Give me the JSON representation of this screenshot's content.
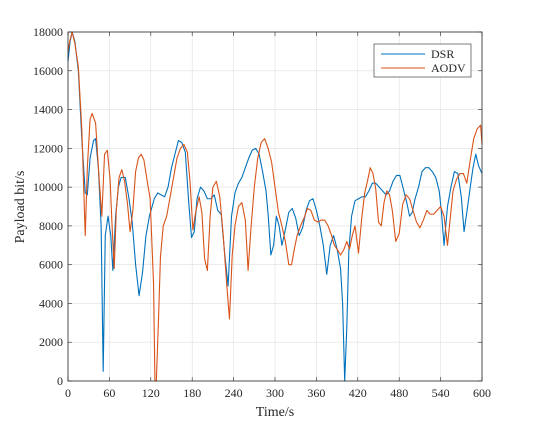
{
  "chart_data": {
    "type": "line",
    "title": "",
    "xlabel": "Time/s",
    "ylabel": "Payload bit/s",
    "xlim": [
      0,
      600
    ],
    "ylim": [
      0,
      18000
    ],
    "xticks": [
      0,
      60,
      120,
      180,
      240,
      300,
      360,
      420,
      480,
      540,
      600
    ],
    "yticks": [
      0,
      2000,
      4000,
      6000,
      8000,
      10000,
      12000,
      14000,
      16000,
      18000
    ],
    "grid": true,
    "legend_position": "top-right",
    "series": [
      {
        "name": "DSR",
        "color": "#0072BD",
        "points": [
          [
            0,
            16500
          ],
          [
            3,
            17500
          ],
          [
            6,
            18000
          ],
          [
            10,
            17500
          ],
          [
            15,
            16000
          ],
          [
            20,
            12500
          ],
          [
            25,
            9700
          ],
          [
            28,
            9600
          ],
          [
            32,
            11500
          ],
          [
            37,
            12400
          ],
          [
            40,
            12500
          ],
          [
            44,
            11000
          ],
          [
            48,
            8000
          ],
          [
            51,
            500
          ],
          [
            54,
            7500
          ],
          [
            58,
            8500
          ],
          [
            62,
            7500
          ],
          [
            65,
            5700
          ],
          [
            69,
            8500
          ],
          [
            73,
            10000
          ],
          [
            77,
            10500
          ],
          [
            83,
            10500
          ],
          [
            88,
            9500
          ],
          [
            93,
            8200
          ],
          [
            98,
            6000
          ],
          [
            103,
            4400
          ],
          [
            108,
            5600
          ],
          [
            113,
            7500
          ],
          [
            118,
            8500
          ],
          [
            125,
            9400
          ],
          [
            130,
            9700
          ],
          [
            135,
            9600
          ],
          [
            140,
            9500
          ],
          [
            145,
            10000
          ],
          [
            150,
            11000
          ],
          [
            155,
            11700
          ],
          [
            160,
            12400
          ],
          [
            165,
            12300
          ],
          [
            170,
            11800
          ],
          [
            175,
            9200
          ],
          [
            179,
            7400
          ],
          [
            183,
            7700
          ],
          [
            187,
            9400
          ],
          [
            192,
            10000
          ],
          [
            197,
            9800
          ],
          [
            202,
            9400
          ],
          [
            207,
            9400
          ],
          [
            212,
            9600
          ],
          [
            217,
            8800
          ],
          [
            222,
            8600
          ],
          [
            227,
            6600
          ],
          [
            232,
            4900
          ],
          [
            237,
            8500
          ],
          [
            242,
            9700
          ],
          [
            247,
            10200
          ],
          [
            252,
            10500
          ],
          [
            257,
            11000
          ],
          [
            262,
            11500
          ],
          [
            267,
            11900
          ],
          [
            272,
            12000
          ],
          [
            277,
            11700
          ],
          [
            282,
            10800
          ],
          [
            287,
            9800
          ],
          [
            290,
            8600
          ],
          [
            294,
            6500
          ],
          [
            298,
            7000
          ],
          [
            302,
            8500
          ],
          [
            306,
            8000
          ],
          [
            310,
            7000
          ],
          [
            315,
            7800
          ],
          [
            320,
            8700
          ],
          [
            325,
            8900
          ],
          [
            330,
            8400
          ],
          [
            335,
            7500
          ],
          [
            340,
            7900
          ],
          [
            345,
            8800
          ],
          [
            350,
            9300
          ],
          [
            355,
            9400
          ],
          [
            360,
            8800
          ],
          [
            365,
            8000
          ],
          [
            370,
            7000
          ],
          [
            375,
            5500
          ],
          [
            380,
            7000
          ],
          [
            385,
            7500
          ],
          [
            390,
            6800
          ],
          [
            395,
            5800
          ],
          [
            398,
            4000
          ],
          [
            401,
            0
          ],
          [
            404,
            2700
          ],
          [
            407,
            6700
          ],
          [
            411,
            8500
          ],
          [
            416,
            9300
          ],
          [
            421,
            9400
          ],
          [
            426,
            9500
          ],
          [
            431,
            9500
          ],
          [
            436,
            9800
          ],
          [
            441,
            10200
          ],
          [
            446,
            10200
          ],
          [
            451,
            10000
          ],
          [
            456,
            9800
          ],
          [
            461,
            9600
          ],
          [
            466,
            9800
          ],
          [
            471,
            10300
          ],
          [
            476,
            10600
          ],
          [
            481,
            10600
          ],
          [
            486,
            9900
          ],
          [
            491,
            9200
          ],
          [
            495,
            8500
          ],
          [
            499,
            8700
          ],
          [
            503,
            9400
          ],
          [
            508,
            10000
          ],
          [
            513,
            10800
          ],
          [
            518,
            11000
          ],
          [
            523,
            11000
          ],
          [
            528,
            10800
          ],
          [
            533,
            10500
          ],
          [
            538,
            9800
          ],
          [
            541,
            8800
          ],
          [
            545,
            7000
          ],
          [
            550,
            9000
          ],
          [
            555,
            10000
          ],
          [
            560,
            10800
          ],
          [
            565,
            10700
          ],
          [
            570,
            9500
          ],
          [
            574,
            7700
          ],
          [
            578,
            8700
          ],
          [
            583,
            10000
          ],
          [
            587,
            11000
          ],
          [
            591,
            11700
          ],
          [
            595,
            11100
          ],
          [
            600,
            10700
          ]
        ]
      },
      {
        "name": "AODV",
        "color": "#D95319",
        "points": [
          [
            0,
            17000
          ],
          [
            3,
            17600
          ],
          [
            6,
            18000
          ],
          [
            10,
            17400
          ],
          [
            15,
            16200
          ],
          [
            20,
            13000
          ],
          [
            25,
            7500
          ],
          [
            28,
            11000
          ],
          [
            32,
            13500
          ],
          [
            35,
            13800
          ],
          [
            40,
            13300
          ],
          [
            45,
            10500
          ],
          [
            49,
            8500
          ],
          [
            53,
            11700
          ],
          [
            57,
            11900
          ],
          [
            61,
            10400
          ],
          [
            64,
            7900
          ],
          [
            67,
            5800
          ],
          [
            70,
            8800
          ],
          [
            74,
            10500
          ],
          [
            78,
            10900
          ],
          [
            82,
            10300
          ],
          [
            86,
            9200
          ],
          [
            90,
            7700
          ],
          [
            94,
            8800
          ],
          [
            98,
            10800
          ],
          [
            102,
            11500
          ],
          [
            106,
            11700
          ],
          [
            110,
            11400
          ],
          [
            114,
            10500
          ],
          [
            119,
            9400
          ],
          [
            124,
            5000
          ],
          [
            126,
            0
          ],
          [
            128,
            0
          ],
          [
            131,
            3000
          ],
          [
            134,
            6400
          ],
          [
            138,
            8000
          ],
          [
            143,
            8500
          ],
          [
            148,
            9500
          ],
          [
            153,
            10500
          ],
          [
            158,
            11500
          ],
          [
            163,
            12000
          ],
          [
            168,
            12200
          ],
          [
            173,
            11800
          ],
          [
            177,
            10200
          ],
          [
            181,
            7800
          ],
          [
            185,
            8700
          ],
          [
            190,
            9500
          ],
          [
            194,
            8700
          ],
          [
            198,
            6300
          ],
          [
            202,
            5700
          ],
          [
            206,
            8500
          ],
          [
            210,
            10000
          ],
          [
            215,
            10300
          ],
          [
            220,
            9500
          ],
          [
            225,
            7500
          ],
          [
            230,
            5000
          ],
          [
            234,
            3200
          ],
          [
            238,
            6500
          ],
          [
            242,
            8000
          ],
          [
            247,
            9000
          ],
          [
            252,
            9200
          ],
          [
            257,
            8300
          ],
          [
            261,
            5700
          ],
          [
            265,
            7800
          ],
          [
            270,
            10000
          ],
          [
            275,
            11500
          ],
          [
            280,
            12300
          ],
          [
            285,
            12500
          ],
          [
            290,
            12000
          ],
          [
            295,
            11300
          ],
          [
            300,
            10000
          ],
          [
            305,
            8700
          ],
          [
            310,
            8000
          ],
          [
            315,
            7200
          ],
          [
            320,
            6000
          ],
          [
            324,
            6000
          ],
          [
            328,
            6800
          ],
          [
            332,
            7500
          ],
          [
            337,
            8000
          ],
          [
            342,
            8400
          ],
          [
            347,
            8900
          ],
          [
            352,
            8800
          ],
          [
            357,
            8300
          ],
          [
            362,
            8200
          ],
          [
            367,
            8300
          ],
          [
            372,
            8300
          ],
          [
            377,
            8000
          ],
          [
            382,
            7500
          ],
          [
            386,
            7000
          ],
          [
            390,
            6800
          ],
          [
            395,
            6500
          ],
          [
            400,
            6800
          ],
          [
            404,
            7200
          ],
          [
            408,
            6800
          ],
          [
            412,
            7500
          ],
          [
            416,
            8000
          ],
          [
            421,
            6600
          ],
          [
            426,
            8500
          ],
          [
            430,
            9700
          ],
          [
            434,
            10300
          ],
          [
            438,
            11000
          ],
          [
            442,
            10700
          ],
          [
            446,
            9900
          ],
          [
            450,
            8200
          ],
          [
            454,
            8000
          ],
          [
            458,
            9200
          ],
          [
            462,
            9800
          ],
          [
            466,
            9600
          ],
          [
            470,
            8800
          ],
          [
            475,
            7200
          ],
          [
            480,
            7600
          ],
          [
            485,
            9100
          ],
          [
            490,
            9600
          ],
          [
            495,
            9400
          ],
          [
            500,
            8800
          ],
          [
            505,
            8200
          ],
          [
            510,
            7900
          ],
          [
            515,
            8300
          ],
          [
            520,
            8800
          ],
          [
            525,
            8600
          ],
          [
            530,
            8600
          ],
          [
            535,
            8800
          ],
          [
            540,
            9000
          ],
          [
            545,
            8500
          ],
          [
            550,
            7000
          ],
          [
            554,
            8400
          ],
          [
            558,
            9800
          ],
          [
            563,
            10400
          ],
          [
            568,
            10700
          ],
          [
            573,
            10700
          ],
          [
            578,
            10200
          ],
          [
            583,
            11400
          ],
          [
            588,
            12500
          ],
          [
            593,
            13000
          ],
          [
            598,
            13200
          ],
          [
            600,
            12200
          ]
        ]
      }
    ]
  }
}
